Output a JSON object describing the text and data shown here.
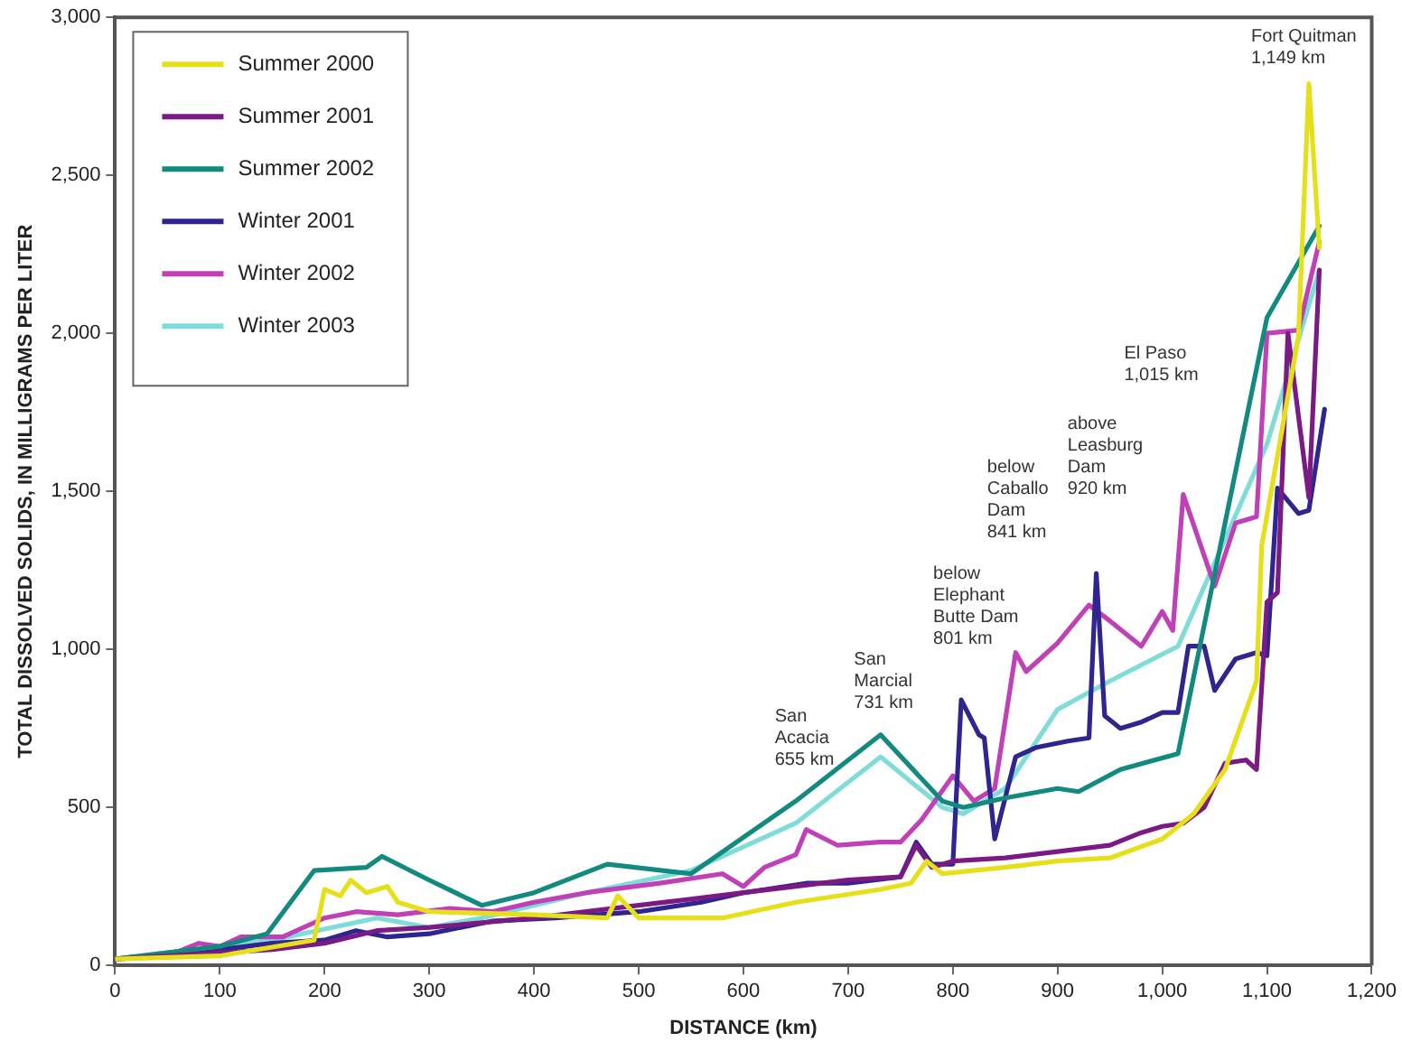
{
  "chart_data": {
    "type": "line",
    "xlabel": "DISTANCE (km)",
    "ylabel": "TOTAL DISSOLVED SOLIDS, IN MILLIGRAMS PER LITER",
    "xlim": [
      0,
      1200
    ],
    "xticks": [
      0,
      100,
      200,
      300,
      400,
      500,
      600,
      700,
      800,
      900,
      {
        "value": 1000,
        "label": "1,000"
      },
      {
        "value": 1100,
        "label": "1,100"
      },
      {
        "value": 1200,
        "label": "1,200"
      }
    ],
    "ylim": [
      0,
      3000
    ],
    "yticks": [
      0,
      500,
      {
        "value": 1000,
        "label": "1,000"
      },
      {
        "value": 1500,
        "label": "1,500"
      },
      {
        "value": 2000,
        "label": "2,000"
      },
      {
        "value": 2500,
        "label": "2,500"
      },
      {
        "value": 3000,
        "label": "3,000"
      }
    ],
    "grid": false,
    "legend": "top left",
    "marker": "none",
    "line_style": "solid",
    "series": [
      {
        "name": "Summer 2000",
        "color": "#e6e01a",
        "x": [
          0,
          100,
          190,
          200,
          215,
          225,
          240,
          260,
          270,
          300,
          400,
          470,
          480,
          500,
          580,
          650,
          730,
          760,
          775,
          790,
          850,
          900,
          950,
          1000,
          1030,
          1060,
          1090,
          1095,
          1130,
          1140,
          1150
        ],
        "values": [
          20,
          30,
          80,
          240,
          220,
          270,
          230,
          250,
          200,
          170,
          160,
          150,
          220,
          150,
          150,
          200,
          240,
          260,
          330,
          290,
          310,
          330,
          340,
          400,
          480,
          620,
          900,
          1330,
          1990,
          2790,
          2270
        ]
      },
      {
        "name": "Summer 2001",
        "color": "#7b1a84",
        "x": [
          0,
          100,
          150,
          200,
          250,
          300,
          400,
          500,
          600,
          700,
          750,
          765,
          780,
          800,
          850,
          900,
          950,
          980,
          1000,
          1020,
          1040,
          1060,
          1080,
          1090,
          1100,
          1110,
          1120,
          1140,
          1150
        ],
        "values": [
          20,
          40,
          50,
          70,
          110,
          120,
          150,
          190,
          230,
          270,
          280,
          380,
          310,
          330,
          340,
          360,
          380,
          420,
          440,
          450,
          500,
          640,
          650,
          620,
          1150,
          1180,
          2000,
          1480,
          2200
        ]
      },
      {
        "name": "Summer 2002",
        "color": "#138a80",
        "x": [
          0,
          100,
          145,
          190,
          240,
          255,
          300,
          350,
          400,
          470,
          550,
          650,
          731,
          790,
          810,
          850,
          900,
          920,
          960,
          1015,
          1100,
          1150
        ],
        "values": [
          20,
          60,
          100,
          300,
          310,
          345,
          270,
          190,
          230,
          320,
          290,
          520,
          730,
          520,
          500,
          530,
          560,
          550,
          620,
          670,
          2050,
          2340
        ]
      },
      {
        "name": "Winter 2001",
        "color": "#2e2590",
        "x": [
          0,
          100,
          150,
          200,
          230,
          260,
          300,
          360,
          420,
          500,
          560,
          600,
          660,
          700,
          750,
          765,
          780,
          800,
          808,
          825,
          830,
          840,
          860,
          880,
          910,
          930,
          937,
          945,
          960,
          980,
          1000,
          1015,
          1025,
          1040,
          1050,
          1070,
          1090,
          1100,
          1110,
          1130,
          1140,
          1155
        ],
        "values": [
          20,
          50,
          70,
          80,
          110,
          90,
          100,
          140,
          150,
          170,
          200,
          230,
          260,
          260,
          280,
          390,
          320,
          320,
          840,
          730,
          720,
          400,
          660,
          690,
          710,
          720,
          1240,
          790,
          750,
          770,
          800,
          800,
          1010,
          1010,
          870,
          970,
          990,
          980,
          1510,
          1430,
          1440,
          1760
        ]
      },
      {
        "name": "Winter 2002",
        "color": "#c040b8",
        "x": [
          0,
          50,
          80,
          100,
          120,
          160,
          200,
          230,
          270,
          320,
          360,
          400,
          450,
          520,
          580,
          600,
          620,
          650,
          660,
          690,
          730,
          750,
          770,
          800,
          820,
          840,
          860,
          870,
          900,
          930,
          950,
          980,
          1000,
          1010,
          1020,
          1050,
          1070,
          1090,
          1100,
          1130,
          1150
        ],
        "values": [
          20,
          30,
          70,
          60,
          90,
          90,
          150,
          170,
          160,
          180,
          170,
          200,
          230,
          260,
          290,
          250,
          310,
          350,
          430,
          380,
          390,
          390,
          460,
          600,
          520,
          560,
          990,
          930,
          1020,
          1140,
          1090,
          1010,
          1120,
          1060,
          1490,
          1200,
          1400,
          1420,
          2000,
          2010,
          2290
        ]
      },
      {
        "name": "Winter 2003",
        "color": "#7fdcd8",
        "x": [
          0,
          150,
          250,
          300,
          350,
          450,
          550,
          650,
          731,
          790,
          810,
          850,
          900,
          950,
          1015,
          1100,
          1150
        ],
        "values": [
          20,
          80,
          150,
          120,
          150,
          230,
          300,
          450,
          660,
          500,
          480,
          560,
          810,
          900,
          1010,
          1650,
          2200
        ]
      }
    ],
    "annotations": [
      "San\nAcacia\n655 km",
      "San\nMarcial\n731 km",
      "below\nElephant\nButte Dam\n801 km",
      "below\nCaballo\nDam\n841 km",
      "above\nLeasburg\nDam\n920 km",
      "El Paso\n1,015 km",
      "Fort Quitman\n1,149 km"
    ]
  }
}
